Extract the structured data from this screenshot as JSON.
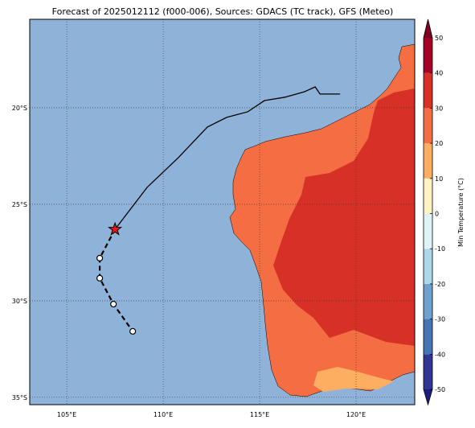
{
  "title": "Forecast of 2025012112 (f000-006), Sources: GDACS (TC track), GFS (Meteo)",
  "map": {
    "lon_lim": [
      103.08,
      123.04
    ],
    "lat_lim": [
      -35.38,
      -15.42
    ],
    "lon_ticks": [
      {
        "value": 105,
        "label": "105°E"
      },
      {
        "value": 110,
        "label": "110°E"
      },
      {
        "value": 115,
        "label": "115°E"
      },
      {
        "value": 120,
        "label": "120°E"
      }
    ],
    "lat_ticks": [
      {
        "value": -20,
        "label": "20°S"
      },
      {
        "value": -25,
        "label": "25°S"
      },
      {
        "value": -30,
        "label": "30°S"
      },
      {
        "value": -35,
        "label": "35°S"
      }
    ],
    "past_track": {
      "lon": [
        119.17,
        118.13,
        117.88,
        117.33,
        116.29,
        115.25,
        114.38,
        113.29,
        112.29,
        110.79,
        109.17,
        107.5
      ],
      "lat": [
        -19.29,
        -19.29,
        -18.92,
        -19.17,
        -19.46,
        -19.63,
        -20.21,
        -20.5,
        -21.0,
        -22.58,
        -24.12,
        -26.3
      ]
    },
    "forecast_track": {
      "lon": [
        107.5,
        106.71,
        106.71,
        107.42,
        108.42
      ],
      "lat": [
        -26.3,
        -27.79,
        -28.83,
        -30.17,
        -31.58
      ]
    }
  },
  "colorbar": {
    "label": "Min Temperature (°C)",
    "lim": [
      -50,
      50
    ],
    "ticks": [
      50,
      40,
      30,
      20,
      10,
      0,
      -10,
      -20,
      -30,
      -40,
      -50
    ],
    "levels": [
      -50,
      -40,
      -30,
      -20,
      -10,
      0,
      10,
      20,
      30,
      40,
      50
    ],
    "colors": [
      "#313695",
      "#4575b4",
      "#6ea1cf",
      "#abd9e9",
      "#e0f3f8",
      "#fff3c4",
      "#fdae61",
      "#f46d43",
      "#d73027",
      "#a50026"
    ],
    "under_color": "#1c1c7e",
    "over_color": "#7f0022"
  }
}
